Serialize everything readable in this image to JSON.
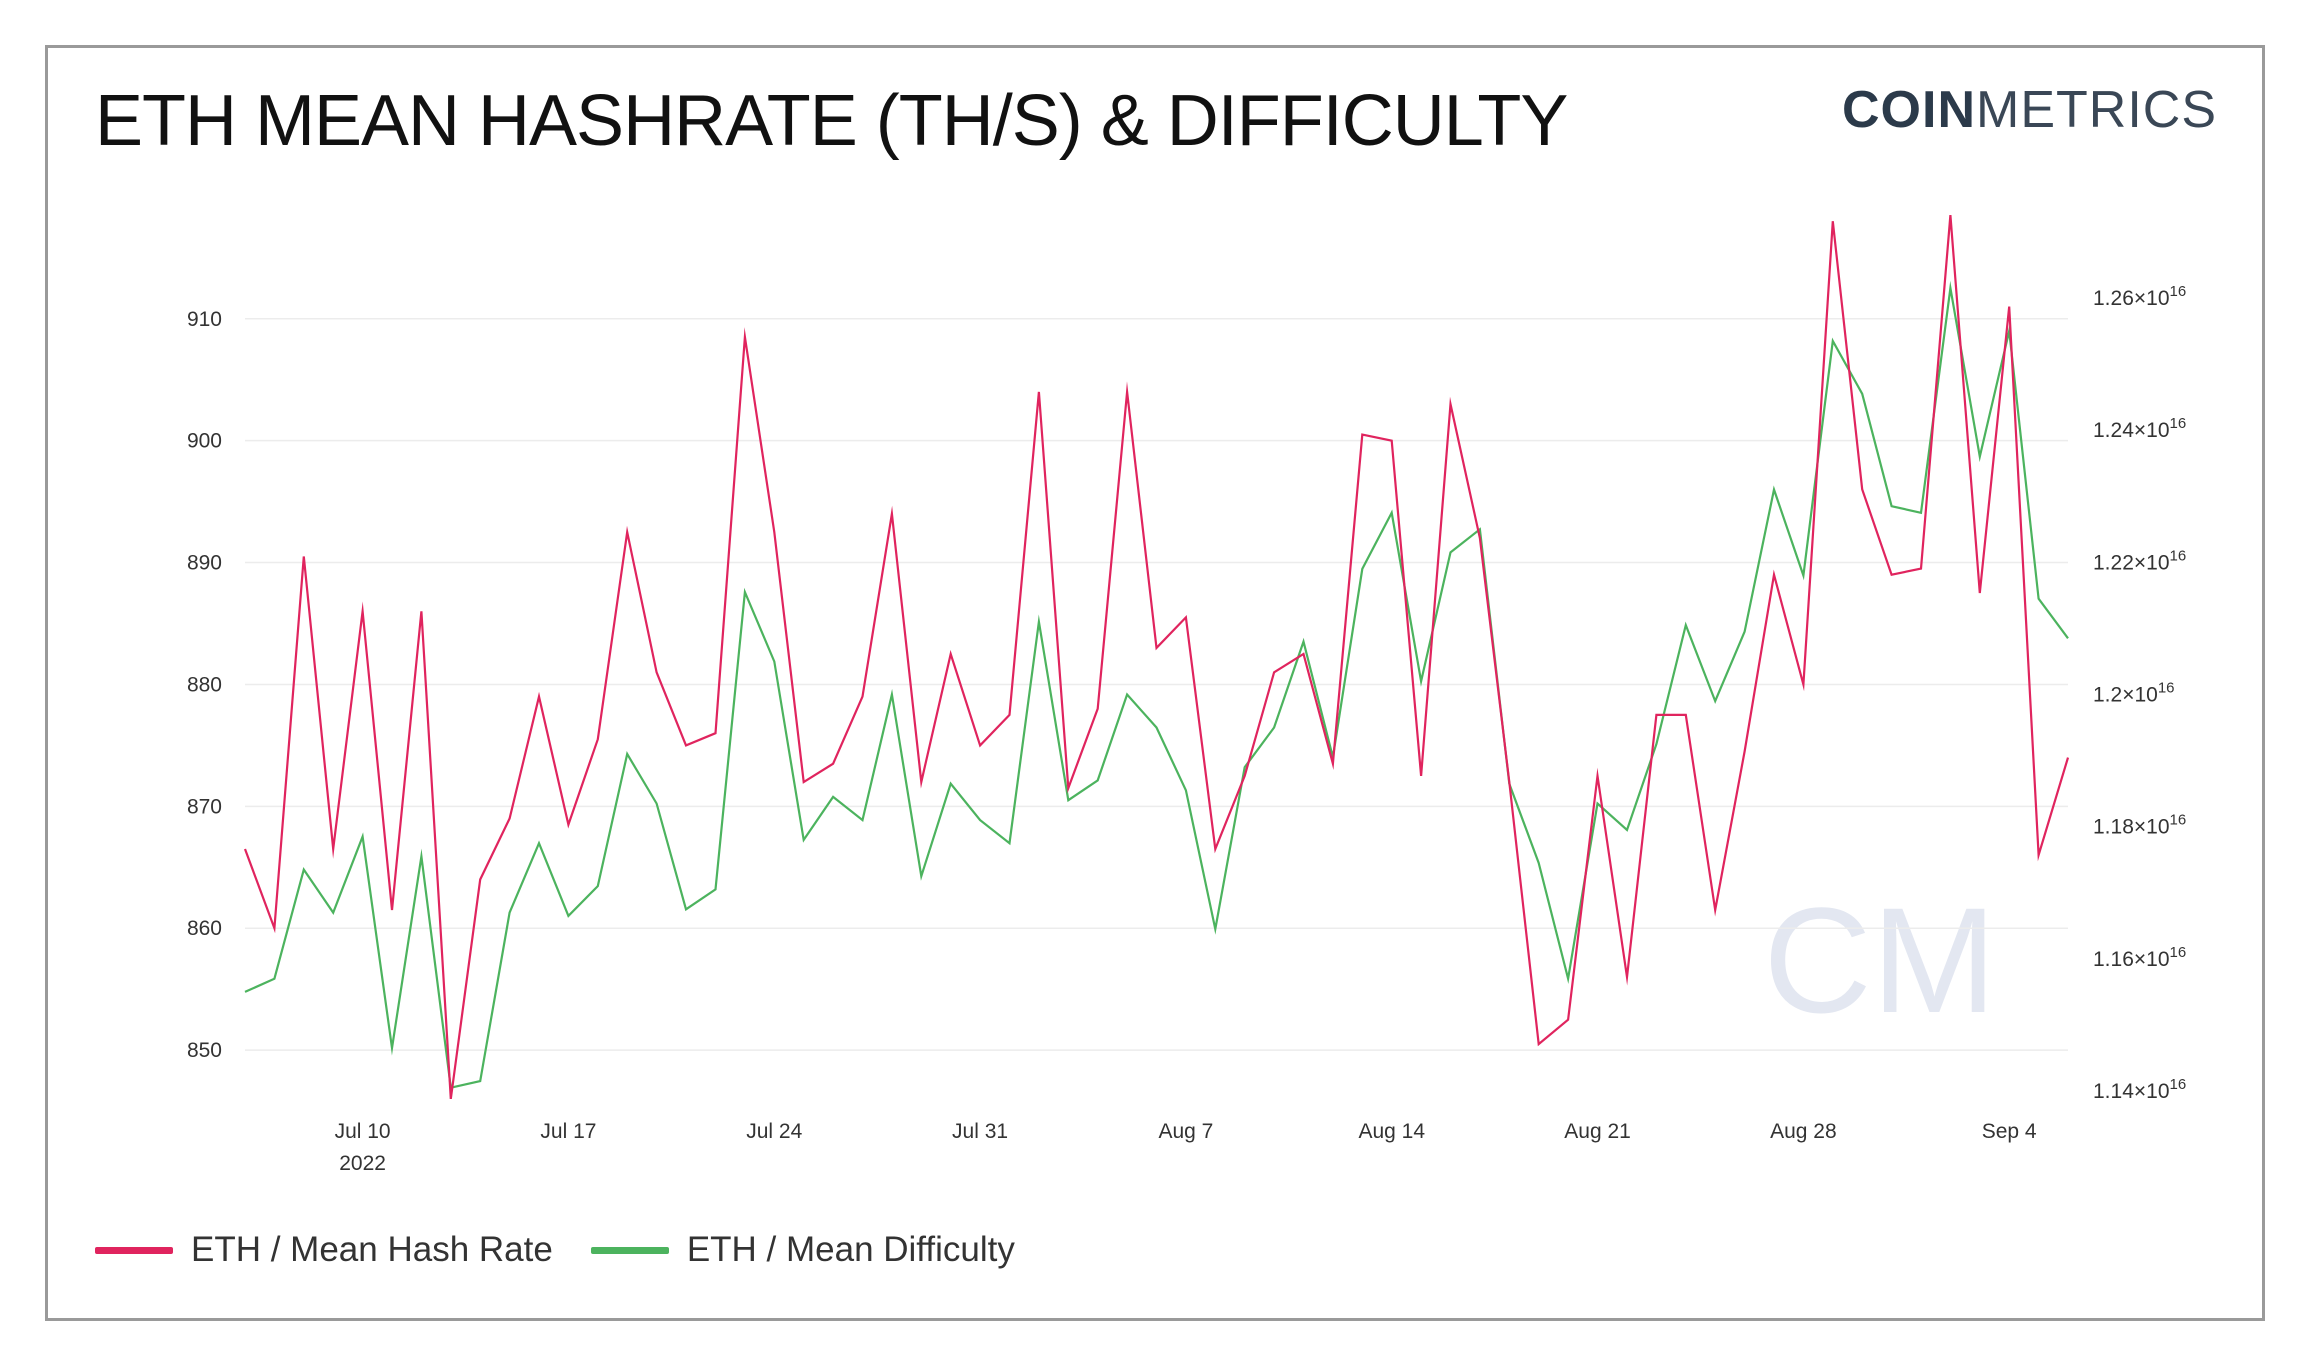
{
  "header": {
    "title": "ETH MEAN HASHRATE (TH/S) & DIFFICULTY",
    "logo_bold": "COIN",
    "logo_light": "METRICS"
  },
  "chart_data": {
    "type": "line",
    "title": "ETH MEAN HASHRATE (TH/S) & DIFFICULTY",
    "x": [
      "2022-07-06",
      "2022-07-07",
      "2022-07-08",
      "2022-07-09",
      "2022-07-10",
      "2022-07-11",
      "2022-07-12",
      "2022-07-13",
      "2022-07-14",
      "2022-07-15",
      "2022-07-16",
      "2022-07-17",
      "2022-07-18",
      "2022-07-19",
      "2022-07-20",
      "2022-07-21",
      "2022-07-22",
      "2022-07-23",
      "2022-07-24",
      "2022-07-25",
      "2022-07-26",
      "2022-07-27",
      "2022-07-28",
      "2022-07-29",
      "2022-07-30",
      "2022-07-31",
      "2022-08-01",
      "2022-08-02",
      "2022-08-03",
      "2022-08-04",
      "2022-08-05",
      "2022-08-06",
      "2022-08-07",
      "2022-08-08",
      "2022-08-09",
      "2022-08-10",
      "2022-08-11",
      "2022-08-12",
      "2022-08-13",
      "2022-08-14",
      "2022-08-15",
      "2022-08-16",
      "2022-08-17",
      "2022-08-18",
      "2022-08-19",
      "2022-08-20",
      "2022-08-21",
      "2022-08-22",
      "2022-08-23",
      "2022-08-24",
      "2022-08-25",
      "2022-08-26",
      "2022-08-27",
      "2022-08-28",
      "2022-08-29",
      "2022-08-30",
      "2022-08-31",
      "2022-09-01",
      "2022-09-02",
      "2022-09-03",
      "2022-09-04",
      "2022-09-05",
      "2022-09-06"
    ],
    "x_ticks": [
      "Jul 10",
      "Jul 17",
      "Jul 24",
      "Jul 31",
      "Aug 7",
      "Aug 14",
      "Aug 21",
      "Aug 28",
      "Sep 4"
    ],
    "x_tick_dates": [
      "2022-07-10",
      "2022-07-17",
      "2022-07-24",
      "2022-07-31",
      "2022-08-07",
      "2022-08-14",
      "2022-08-21",
      "2022-08-28",
      "2022-09-04"
    ],
    "x_year_label": "2022",
    "y_left": {
      "ticks": [
        "850",
        "860",
        "870",
        "880",
        "890",
        "900",
        "910"
      ],
      "ylim": [
        845.5,
        914
      ]
    },
    "y_right": {
      "ticks": [
        [
          "1.14",
          "16"
        ],
        [
          "1.16",
          "16"
        ],
        [
          "1.18",
          "16"
        ],
        [
          "1.2",
          "16"
        ],
        [
          "1.22",
          "16"
        ],
        [
          "1.24",
          "16"
        ],
        [
          "1.26",
          "16"
        ]
      ],
      "ylim": [
        1.14e+16,
        1.26e+16
      ]
    },
    "grid": true,
    "legend_position": "bottom-left",
    "series": [
      {
        "name": "ETH / Mean Hash Rate",
        "color": "#e0245e",
        "axis": "left",
        "values": [
          866.5,
          860,
          890.5,
          866.5,
          886,
          861.5,
          886,
          846,
          864,
          869,
          879,
          868.5,
          875.5,
          892.5,
          881,
          875,
          876,
          908.5,
          892.5,
          872,
          873.5,
          879,
          894,
          872,
          882.5,
          875,
          877.5,
          904,
          871.5,
          878,
          904,
          883,
          885.5,
          866.5,
          872.5,
          881,
          882.5,
          873.5,
          900.5,
          900,
          872.5,
          903,
          892,
          872,
          850.5,
          852.5,
          872.5,
          856,
          877.5,
          877.5,
          861.5,
          874.5,
          889,
          880,
          918,
          896,
          889,
          889.5,
          918.5,
          887.5,
          911,
          866,
          874
        ]
      },
      {
        "name": "ETH / Mean Difficulty",
        "color": "#4cb35e",
        "axis": "right",
        "values": [
          1.155e+16,
          1.157e+16,
          1.1735e+16,
          1.167e+16,
          1.1785e+16,
          1.1465e+16,
          1.1755e+16,
          1.1405e+16,
          1.1415e+16,
          1.167e+16,
          1.1775e+16,
          1.1665e+16,
          1.171e+16,
          1.191e+16,
          1.1835e+16,
          1.1675e+16,
          1.1705e+16,
          1.2155e+16,
          1.205e+16,
          1.178e+16,
          1.1845e+16,
          1.181e+16,
          1.2e+16,
          1.1725e+16,
          1.1865e+16,
          1.181e+16,
          1.1775e+16,
          1.211e+16,
          1.184e+16,
          1.187e+16,
          1.2e+16,
          1.195e+16,
          1.1855e+16,
          1.1645e+16,
          1.189e+16,
          1.195e+16,
          1.208e+16,
          1.1905e+16,
          1.219e+16,
          1.2275e+16,
          1.202e+16,
          1.2215e+16,
          1.225e+16,
          1.1865e+16,
          1.1745e+16,
          1.157e+16,
          1.1835e+16,
          1.1795e+16,
          1.1925e+16,
          1.2105e+16,
          1.199e+16,
          1.2095e+16,
          1.231e+16,
          1.218e+16,
          1.2535e+16,
          1.2455e+16,
          1.2285e+16,
          1.2275e+16,
          1.2615e+16,
          1.236e+16,
          1.255e+16,
          1.2145e+16,
          1.2085e+16
        ]
      }
    ]
  },
  "legend": {
    "items": [
      {
        "label": "ETH / Mean Hash Rate",
        "color": "#e0245e"
      },
      {
        "label": "ETH / Mean Difficulty",
        "color": "#4cb35e"
      }
    ]
  },
  "watermark": {
    "text": "CM",
    "color": "#e3e7f1"
  }
}
